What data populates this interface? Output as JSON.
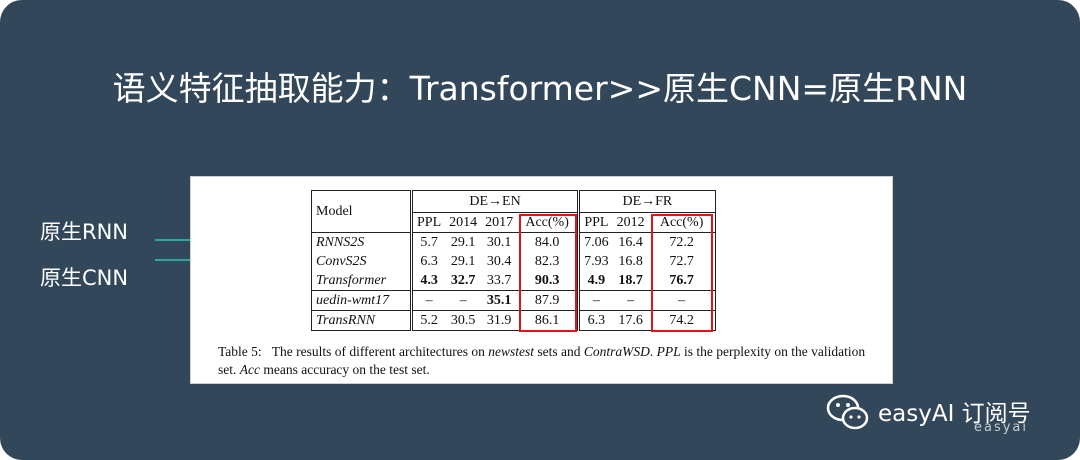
{
  "title": "语义特征抽取能力：Transformer>>原生CNN=原生RNN",
  "annotations": [
    "原生RNN",
    "原生CNN"
  ],
  "table": {
    "header": {
      "model": "Model",
      "groups": [
        "DE→EN",
        "DE→FR"
      ],
      "columns": [
        "PPL",
        "2014",
        "2017",
        "Acc(%)",
        "PPL",
        "2012",
        "Acc(%)"
      ]
    },
    "rows": [
      [
        "RNNS2S",
        "5.7",
        "29.1",
        "30.1",
        "84.0",
        "7.06",
        "16.4",
        "72.2"
      ],
      [
        "ConvS2S",
        "6.3",
        "29.1",
        "30.4",
        "82.3",
        "7.93",
        "16.8",
        "72.7"
      ],
      [
        "Transformer",
        "4.3",
        "32.7",
        "33.7",
        "90.3",
        "4.9",
        "18.7",
        "76.7"
      ],
      [
        "uedin-wmt17",
        "–",
        "–",
        "35.1",
        "87.9",
        "–",
        "–",
        "–"
      ],
      [
        "TransRNN",
        "5.2",
        "30.5",
        "31.9",
        "86.1",
        "6.3",
        "17.6",
        "74.2"
      ]
    ]
  },
  "caption": [
    "Table 5:",
    "The results of different architectures on ",
    "newstest",
    " sets and ",
    "ContraWSD",
    ". ",
    "PPL",
    " is the perplexity on the validation set. ",
    "Acc",
    " means accuracy on the test set."
  ],
  "watermark": {
    "brand": "easyAI 订阅号",
    "sub": "easyai"
  }
}
